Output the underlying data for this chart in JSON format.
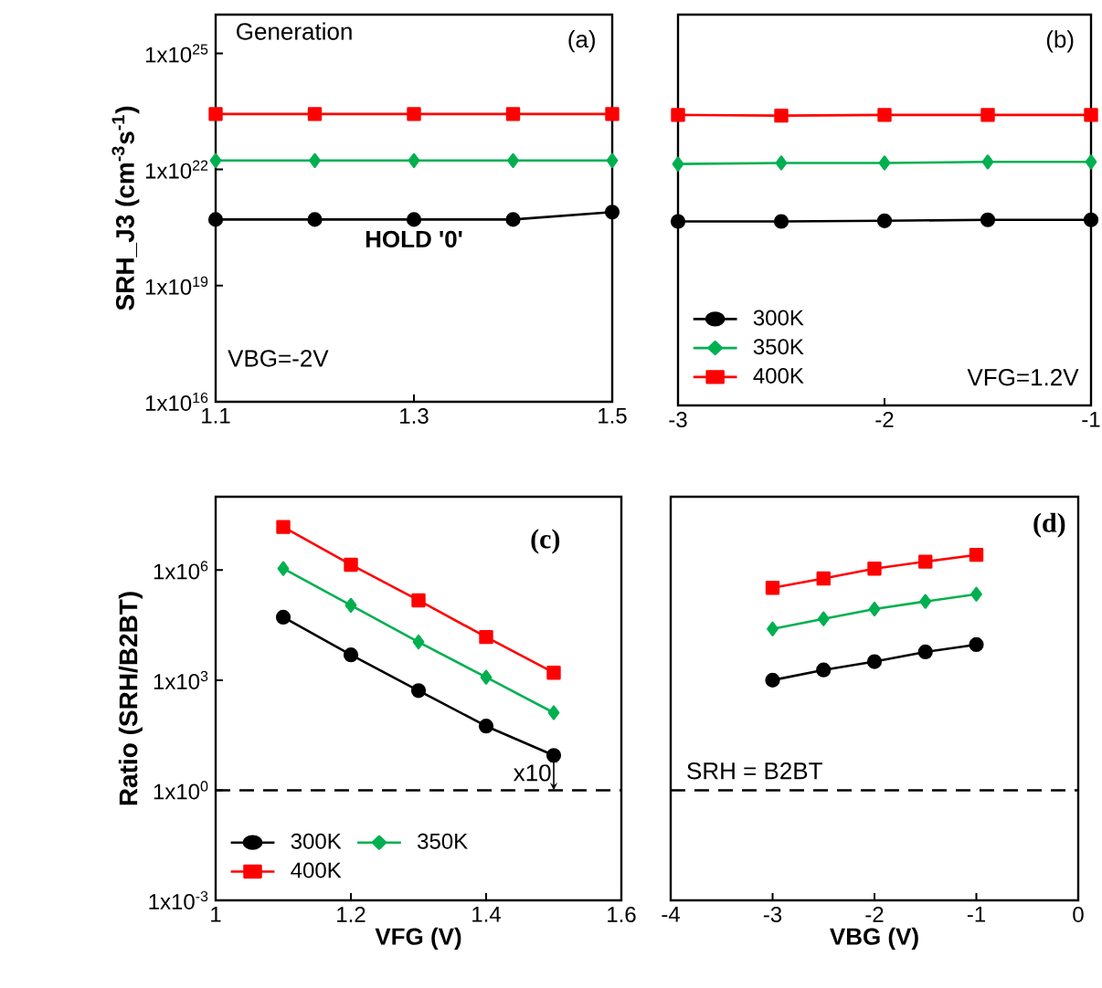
{
  "chart_data": [
    {
      "type": "line",
      "ylabel": "SRH_J3 (cm$^{-3}$s$^{-1}$)",
      "annotations": [
        "Generation",
        "(a)",
        "HOLD '0'",
        "VBG=-2V"
      ],
      "x": [
        1.1,
        1.2,
        1.3,
        1.4,
        1.5
      ],
      "xlim": [
        1.1,
        1.5
      ],
      "xticks": [
        1.1,
        1.3,
        1.5
      ],
      "ylim": [
        1e+16,
        1e+26
      ],
      "yticks": [
        {
          "value": 1e+16,
          "label": "1x10$^{16}$"
        },
        {
          "value": 1e+19,
          "label": "1x10$^{19}$"
        },
        {
          "value": 1e+22,
          "label": "1x10$^{22}$"
        },
        {
          "value": 1e+25,
          "label": "1x10$^{25}$"
        }
      ],
      "log": "y",
      "line_style": "solid",
      "series": [
        {
          "color": "#000000",
          "marker": "circle",
          "values": [
            5.1e+20,
            5.1e+20,
            5.1e+20,
            5.1e+20,
            7.9e+20
          ]
        },
        {
          "color": "#00b050",
          "marker": "diamond",
          "values": [
            1.7e+22,
            1.7e+22,
            1.7e+22,
            1.7e+22,
            1.7e+22
          ]
        },
        {
          "color": "#ff0000",
          "marker": "square",
          "values": [
            2.7e+23,
            2.7e+23,
            2.7e+23,
            2.7e+23,
            2.7e+23
          ]
        }
      ]
    },
    {
      "type": "line",
      "annotations": [
        "(b)",
        "VFG=1.2V"
      ],
      "x": [
        -3,
        -2.5,
        -2,
        -1.5,
        -1
      ],
      "xlim": [
        -3,
        -1
      ],
      "xticks": [
        -3,
        -2,
        -1
      ],
      "ylim": [
        1e+16,
        1e+26
      ],
      "log": "y",
      "tick_labels": "x",
      "legend": "bottom left",
      "line_style": "solid",
      "series": [
        {
          "name": "300K",
          "color": "#000000",
          "marker": "circle",
          "values": [
            5.1e+20,
            5.1e+20,
            5.3e+20,
            5.6e+20,
            5.6e+20
          ]
        },
        {
          "name": "350K",
          "color": "#00b050",
          "marker": "diamond",
          "values": [
            1.5e+22,
            1.6e+22,
            1.6e+22,
            1.7e+22,
            1.7e+22
          ]
        },
        {
          "name": "400K",
          "color": "#ff0000",
          "marker": "square",
          "values": [
            2.7e+23,
            2.6e+23,
            2.7e+23,
            2.7e+23,
            2.7e+23
          ]
        }
      ]
    },
    {
      "type": "line",
      "ylabel": "Ratio (SRH/B2BT)",
      "xlabel": "VFG (V)",
      "annotations": [
        "(c)",
        {
          "text": "x10",
          "x": 1.5,
          "y": 8.9
        },
        "SRH = B2BT"
      ],
      "x": [
        1.1,
        1.2,
        1.3,
        1.4,
        1.5
      ],
      "xlim": [
        1,
        1.6
      ],
      "xticks": [
        1,
        1.2,
        1.4,
        1.6
      ],
      "ylim": [
        0.001,
        100000000.0
      ],
      "yticks": [
        {
          "value": 0.001,
          "label": "1x10$^{-3}$"
        },
        {
          "value": 1,
          "label": "1x10$^{0}$"
        },
        {
          "value": 1000.0,
          "label": "1x10$^{3}$"
        },
        {
          "value": 1000000.0,
          "label": "1x10$^{6}$"
        }
      ],
      "log": "y",
      "legend": "bottom left",
      "line_style": "solid",
      "ref_lines": [
        {
          "axis": "y",
          "value": 1,
          "line_style": "dashed"
        }
      ],
      "series": [
        {
          "name": "300K",
          "color": "#000000",
          "marker": "circle",
          "values": [
            52000.0,
            4900.0,
            520.0,
            56,
            8.9
          ]
        },
        {
          "name": "350K",
          "color": "#00b050",
          "marker": "diamond",
          "values": [
            1100000.0,
            110000.0,
            11000.0,
            1200.0,
            130.0
          ]
        },
        {
          "name": "400K",
          "color": "#ff0000",
          "marker": "square",
          "values": [
            15000000.0,
            1400000.0,
            150000.0,
            15000.0,
            1600.0
          ]
        }
      ]
    },
    {
      "type": "line",
      "xlabel": "VBG (V)",
      "annotations": [
        "(d)"
      ],
      "x": [
        -3,
        -2.5,
        -2,
        -1.5,
        -1
      ],
      "xlim": [
        -4,
        0
      ],
      "xticks": [
        -4,
        -3,
        -2,
        -1,
        0
      ],
      "ylim": [
        0.001,
        100000000.0
      ],
      "log": "y",
      "tick_labels": "x",
      "line_style": "solid",
      "ref_lines": [
        {
          "axis": "y",
          "value": 1,
          "line_style": "dashed"
        }
      ],
      "series": [
        {
          "color": "#000000",
          "marker": "circle",
          "values": [
            1000.0,
            1900.0,
            3200.0,
            5900.0,
            9300.0
          ]
        },
        {
          "color": "#00b050",
          "marker": "diamond",
          "values": [
            25000.0,
            47000.0,
            87000.0,
            140000.0,
            220000.0
          ]
        },
        {
          "color": "#ff0000",
          "marker": "square",
          "values": [
            330000.0,
            590000.0,
            1100000.0,
            1700000.0,
            2600000.0
          ]
        }
      ]
    }
  ]
}
